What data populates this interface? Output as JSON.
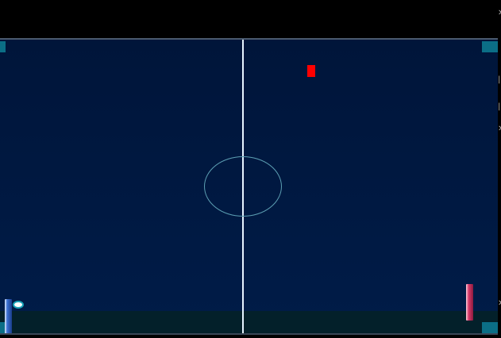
{
  "colors": {
    "arena_top": "#00153a",
    "arena_bottom": "#001c48",
    "bottom_strip": "#03202a",
    "center_line": "#e6f4ff",
    "center_circle": "#5c9fb3",
    "corner_post": "#0b6e86",
    "left_paddle": "#3a6fd2",
    "right_paddle": "#d83a6b",
    "ball": "#ffffff",
    "ball_outline": "#17a2b8",
    "red_block": "#ff0000"
  },
  "icons": {
    "edge_glyphs": [
      "close-icon",
      "unknown-glyph",
      "unknown-glyph",
      "close-icon",
      "close-icon"
    ]
  }
}
